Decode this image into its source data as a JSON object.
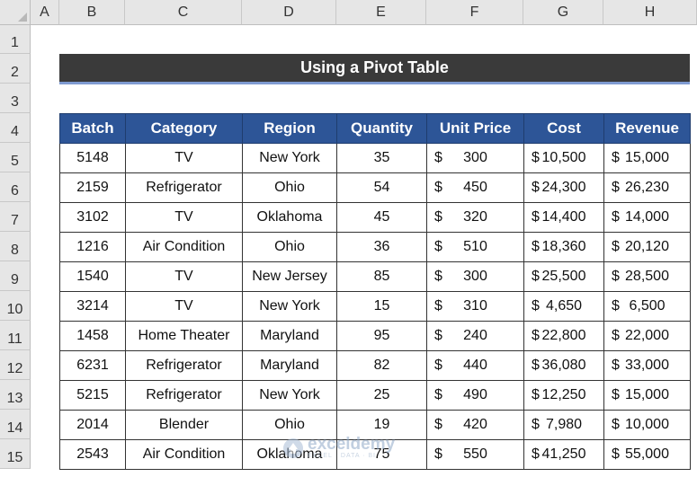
{
  "spreadsheet": {
    "columns": [
      "A",
      "B",
      "C",
      "D",
      "E",
      "F",
      "G",
      "H"
    ],
    "rows": [
      "1",
      "2",
      "3",
      "4",
      "5",
      "6",
      "7",
      "8",
      "9",
      "10",
      "11",
      "12",
      "13",
      "14",
      "15"
    ]
  },
  "title": "Using a Pivot Table",
  "table": {
    "headers": [
      "Batch",
      "Category",
      "Region",
      "Quantity",
      "Unit Price",
      "Cost",
      "Revenue"
    ],
    "currency_symbol": "$",
    "rows": [
      {
        "batch": "5148",
        "category": "TV",
        "region": "New York",
        "quantity": "35",
        "unit_price": "300",
        "cost": "10,500",
        "revenue": "15,000"
      },
      {
        "batch": "2159",
        "category": "Refrigerator",
        "region": "Ohio",
        "quantity": "54",
        "unit_price": "450",
        "cost": "24,300",
        "revenue": "26,230"
      },
      {
        "batch": "3102",
        "category": "TV",
        "region": "Oklahoma",
        "quantity": "45",
        "unit_price": "320",
        "cost": "14,400",
        "revenue": "14,000"
      },
      {
        "batch": "1216",
        "category": "Air Condition",
        "region": "Ohio",
        "quantity": "36",
        "unit_price": "510",
        "cost": "18,360",
        "revenue": "20,120"
      },
      {
        "batch": "1540",
        "category": "TV",
        "region": "New Jersey",
        "quantity": "85",
        "unit_price": "300",
        "cost": "25,500",
        "revenue": "28,500"
      },
      {
        "batch": "3214",
        "category": "TV",
        "region": "New York",
        "quantity": "15",
        "unit_price": "310",
        "cost": "4,650",
        "revenue": "6,500"
      },
      {
        "batch": "1458",
        "category": "Home Theater",
        "region": "Maryland",
        "quantity": "95",
        "unit_price": "240",
        "cost": "22,800",
        "revenue": "22,000"
      },
      {
        "batch": "6231",
        "category": "Refrigerator",
        "region": "Maryland",
        "quantity": "82",
        "unit_price": "440",
        "cost": "36,080",
        "revenue": "33,000"
      },
      {
        "batch": "5215",
        "category": "Refrigerator",
        "region": "New York",
        "quantity": "25",
        "unit_price": "490",
        "cost": "12,250",
        "revenue": "15,000"
      },
      {
        "batch": "2014",
        "category": "Blender",
        "region": "Ohio",
        "quantity": "19",
        "unit_price": "420",
        "cost": "7,980",
        "revenue": "10,000"
      },
      {
        "batch": "2543",
        "category": "Air Condition",
        "region": "Oklahoma",
        "quantity": "75",
        "unit_price": "550",
        "cost": "41,250",
        "revenue": "55,000"
      }
    ]
  },
  "watermark": {
    "name": "exceldemy",
    "tagline": "EXCEL · DATA · BI",
    "icon": "exceldemy-logo-icon"
  },
  "colors": {
    "header_fill": "#2d5597",
    "title_fill": "#3a3a3a",
    "accent_line": "#7f9bd1"
  }
}
